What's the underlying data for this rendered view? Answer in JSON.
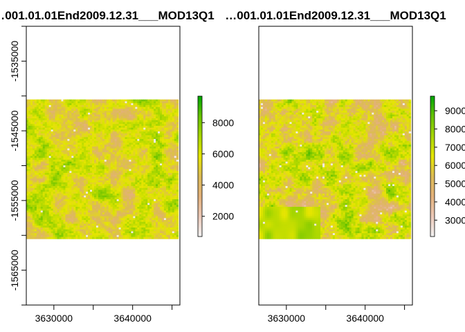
{
  "chart_data": [
    {
      "type": "heatmap",
      "title": "…001.01.01End2009.12.31___MOD13Q1",
      "xlabel": "",
      "ylabel": "",
      "xlim": [
        3626500,
        3646000
      ],
      "ylim": [
        -1570000,
        -1530000
      ],
      "raster_extent": {
        "x": [
          3626500,
          3645800
        ],
        "y": [
          -1560500,
          -1540500
        ]
      },
      "x_ticks": [
        3630000,
        3640000
      ],
      "x_tick_labels": [
        "3630000",
        "3640000"
      ],
      "y_ticks": [
        -1565000,
        -1555000,
        -1545000,
        -1535000
      ],
      "y_tick_labels": [
        "-1565000",
        "-1555000",
        "-1545000",
        "-1535000"
      ],
      "legend": {
        "placement": "right",
        "min": 700,
        "max": 9700,
        "ticks": [
          2000,
          4000,
          6000,
          8000
        ],
        "tick_labels": [
          "2000",
          "4000",
          "6000",
          "8000"
        ],
        "colors": [
          "#f2f2f2",
          "#ebc8b8",
          "#e3b17a",
          "#dcbb55",
          "#e6e600",
          "#a8d600",
          "#66c200",
          "#00a600"
        ]
      }
    },
    {
      "type": "heatmap",
      "title": "…001.01.01End2009.12.31___MOD13Q1",
      "xlabel": "",
      "ylabel": "",
      "xlim": [
        3626500,
        3646000
      ],
      "ylim": [
        -1570000,
        -1530000
      ],
      "raster_extent": {
        "x": [
          3626500,
          3645800
        ],
        "y": [
          -1560500,
          -1540500
        ]
      },
      "x_ticks": [
        3630000,
        3640000
      ],
      "x_tick_labels": [
        "3630000",
        "3640000"
      ],
      "y_ticks": [],
      "y_tick_labels": [],
      "legend": {
        "placement": "right",
        "min": 2100,
        "max": 9800,
        "ticks": [
          3000,
          4000,
          5000,
          6000,
          7000,
          8000,
          9000
        ],
        "tick_labels": [
          "3000",
          "4000",
          "5000",
          "6000",
          "7000",
          "8000",
          "9000"
        ],
        "colors": [
          "#f2f2f2",
          "#ebc8b8",
          "#e3b17a",
          "#dcbb55",
          "#e6e600",
          "#a8d600",
          "#66c200",
          "#00a600"
        ]
      }
    }
  ]
}
